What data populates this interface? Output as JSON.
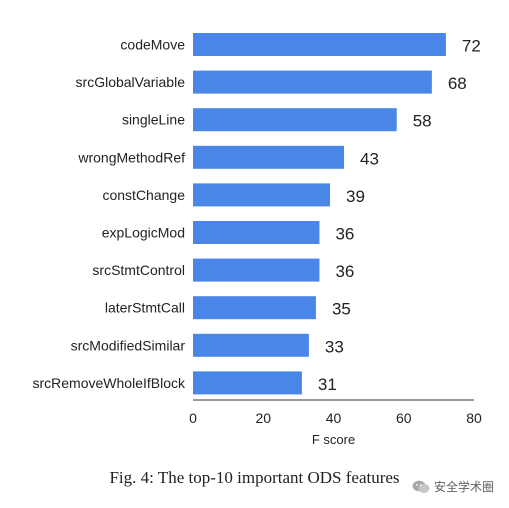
{
  "chart_data": {
    "type": "bar",
    "orientation": "horizontal",
    "categories": [
      "codeMove",
      "srcGlobalVariable",
      "singleLine",
      "wrongMethodRef",
      "constChange",
      "expLogicMod",
      "srcStmtControl",
      "laterStmtCall",
      "srcModifiedSimilar",
      "srcRemoveWholeIfBlock"
    ],
    "values": [
      72,
      68,
      58,
      43,
      39,
      36,
      36,
      35,
      33,
      31
    ],
    "data_labels": [
      "72",
      "68",
      "58",
      "43",
      "39",
      "36",
      "36",
      "35",
      "33",
      "31"
    ],
    "xlabel": "F score",
    "ylabel": "",
    "xlim": [
      0,
      80
    ],
    "xticks": [
      0,
      20,
      40,
      60,
      80
    ],
    "grid": false,
    "bar_color": "#4a86e8"
  },
  "caption": "Fig. 4: The top-10 important ODS features",
  "watermark_text": "安全学术圈",
  "watermark_icon": "wechat-icon"
}
